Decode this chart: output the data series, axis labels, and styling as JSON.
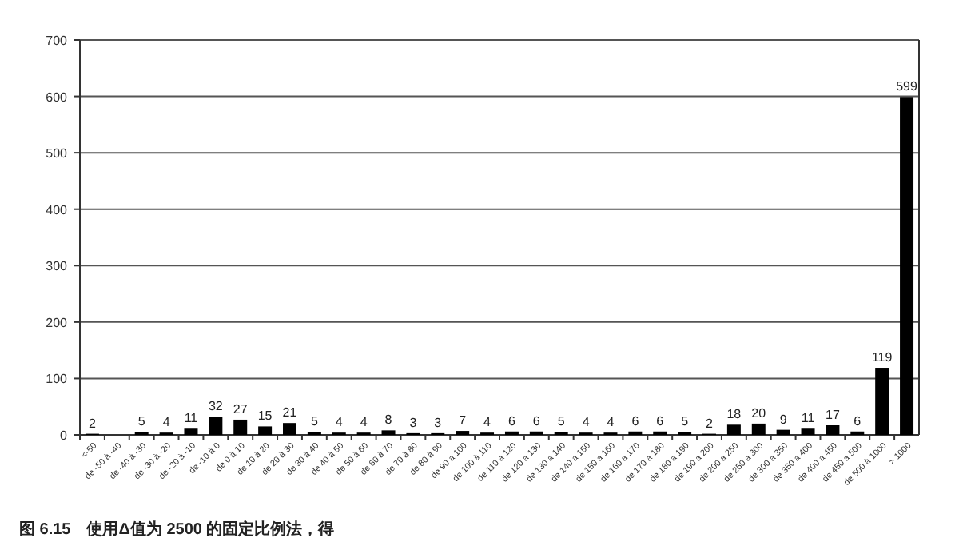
{
  "chart_data": {
    "type": "bar",
    "categories": [
      "<-50",
      "de -50 à -40",
      "de -40 à -30",
      "de -30 à -20",
      "de -20 à -10",
      "de -10 à 0",
      "de 0 à 10",
      "de 10 à 20",
      "de 20 à 30",
      "de 30 à 40",
      "de 40 à 50",
      "de 50 à 60",
      "de 60 à 70",
      "de 70 à 80",
      "de 80 à 90",
      "de 90 à 100",
      "de 100 à 110",
      "de 110 à 120",
      "de 120 à 130",
      "de 130 à 140",
      "de 140 à 150",
      "de 150 à 160",
      "de 160 à 170",
      "de 170 à 180",
      "de 180 à 190",
      "de 190 à 200",
      "de 200 à 250",
      "de 250 à 300",
      "de 300 à 350",
      "de 350 à 400",
      "de 400 à 450",
      "de 450 à 500",
      "de 500 à 1000",
      "> 1000"
    ],
    "values": [
      2,
      0,
      5,
      4,
      11,
      32,
      27,
      15,
      21,
      5,
      4,
      4,
      8,
      3,
      3,
      7,
      4,
      6,
      6,
      5,
      4,
      4,
      6,
      6,
      5,
      2,
      18,
      20,
      9,
      11,
      17,
      6,
      119,
      599
    ],
    "value_labels": [
      "2",
      null,
      "5",
      "4",
      "11",
      "32",
      "27",
      "15",
      "21",
      "5",
      "4",
      "4",
      "8",
      "3",
      "3",
      "7",
      "4",
      "6",
      "6",
      "5",
      "4",
      "4",
      "6",
      "6",
      "5",
      "2",
      "18",
      "20",
      "9",
      "11",
      "17",
      "6",
      "119",
      "599"
    ],
    "color": "#000000",
    "ylim": [
      0,
      700
    ],
    "yticks": [
      0,
      100,
      200,
      300,
      400,
      500,
      600,
      700
    ],
    "grid": "y",
    "annotations": [
      "图 6.15　使用Δ值为 2500 的固定比例法，得"
    ]
  }
}
